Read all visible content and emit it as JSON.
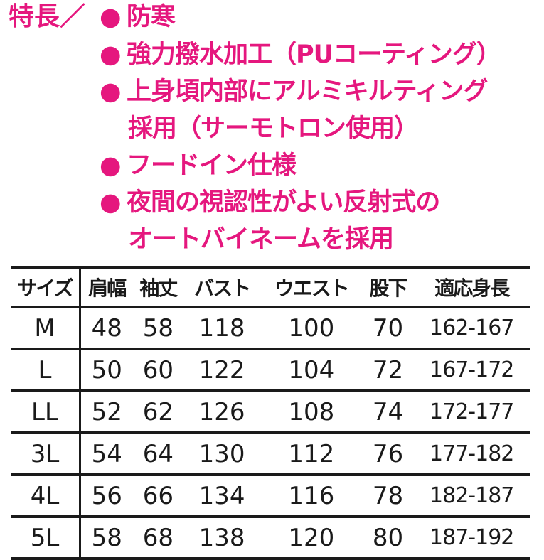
{
  "features": {
    "label": "特長／",
    "bullet_color": "#e5177e",
    "items": [
      {
        "text": "防寒"
      },
      {
        "text": "強力撥水加工（PUコーティング）"
      },
      {
        "text": "上身頃内部にアルミキルティング",
        "cont": "採用（サーモトロン使用）"
      },
      {
        "text": "フードイン仕様"
      },
      {
        "text": "夜間の視認性がよい反射式の",
        "cont": "オートバイネームを採用"
      }
    ]
  },
  "size_table": {
    "headers": [
      "サイズ",
      "肩幅",
      "袖丈",
      "バスト",
      "ウエスト",
      "股下",
      "適応身長"
    ],
    "rows": [
      [
        "M",
        "48",
        "58",
        "118",
        "100",
        "70",
        "162-167"
      ],
      [
        "L",
        "50",
        "60",
        "122",
        "104",
        "72",
        "167-172"
      ],
      [
        "LL",
        "52",
        "62",
        "126",
        "108",
        "74",
        "172-177"
      ],
      [
        "3L",
        "54",
        "64",
        "130",
        "112",
        "76",
        "177-182"
      ],
      [
        "4L",
        "56",
        "66",
        "134",
        "116",
        "78",
        "182-187"
      ],
      [
        "5L",
        "58",
        "68",
        "138",
        "120",
        "80",
        "187-192"
      ]
    ]
  }
}
